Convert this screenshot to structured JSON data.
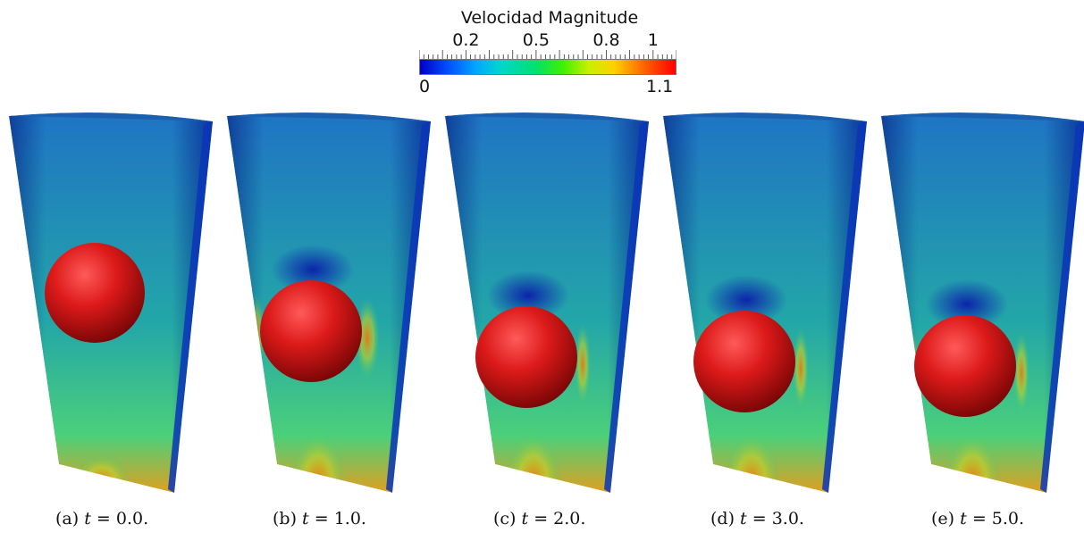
{
  "colorbar": {
    "title": "Velocidad Magnitude",
    "min_label": "0",
    "max_label": "1.1",
    "min": 0,
    "max": 1.1,
    "tick_labels": [
      {
        "text": "0.2",
        "value": 0.2
      },
      {
        "text": "0.5",
        "value": 0.5
      },
      {
        "text": "0.8",
        "value": 0.8
      },
      {
        "text": "1",
        "value": 1.0
      }
    ],
    "colormap": [
      "#0000c8",
      "#00a8ff",
      "#00e070",
      "#c8f000",
      "#ff6000",
      "#ff0000"
    ]
  },
  "panels": [
    {
      "prefix": "(a)",
      "var": "t",
      "eq": "=",
      "value": "0.0."
    },
    {
      "prefix": "(b)",
      "var": "t",
      "eq": "=",
      "value": "1.0."
    },
    {
      "prefix": "(c)",
      "var": "t",
      "eq": "=",
      "value": "2.0."
    },
    {
      "prefix": "(d)",
      "var": "t",
      "eq": "=",
      "value": "3.0."
    },
    {
      "prefix": "(e)",
      "var": "t",
      "eq": "=",
      "value": "5.0."
    }
  ],
  "colors": {
    "sphere": "#dd1a1a",
    "sphere_highlight": "#ff5a5a",
    "sphere_shadow": "#7a0606",
    "fluid_base": "#1f74c4",
    "fluid_dark": "#0a2fa8",
    "fluid_mid": "#23a6a8",
    "fluid_green": "#4bd07a",
    "fluid_hot": "#e0a020"
  }
}
